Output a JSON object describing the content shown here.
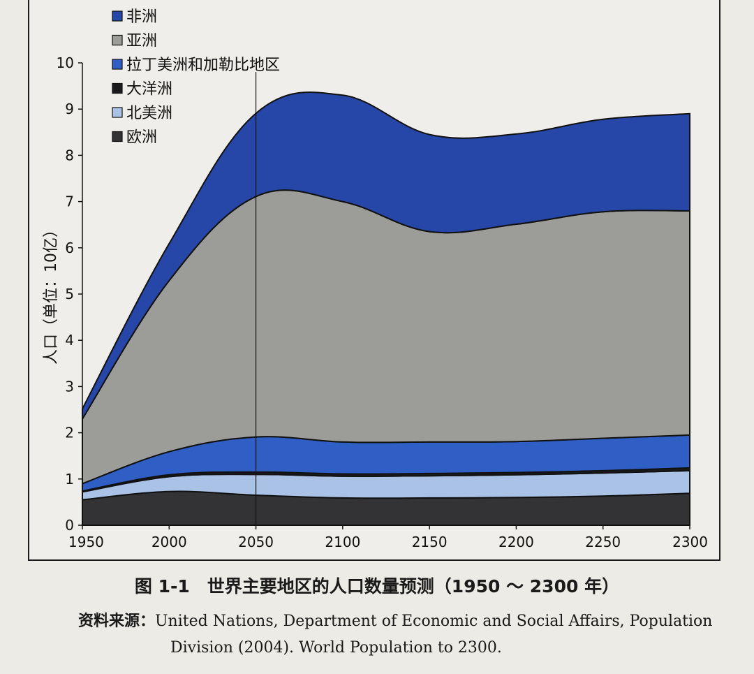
{
  "colors": {
    "africa": "#2646a8",
    "asia": "#9c9c98",
    "latin_america": "#2f5fc4",
    "oceania": "#1b1b1d",
    "north_america": "#a9c2e6",
    "europe": "#333335",
    "background": "#efeeea"
  },
  "chart_data": {
    "type": "area",
    "stacked": true,
    "x": [
      1950,
      2000,
      2050,
      2100,
      2150,
      2200,
      2250,
      2300
    ],
    "ylabel": "人口（单位：10亿）",
    "xlim": [
      1950,
      2300
    ],
    "ylim": [
      0,
      10
    ],
    "xticks": [
      "1950",
      "2000",
      "2050",
      "2100",
      "2150",
      "2200",
      "2250",
      "2300"
    ],
    "yticks": [
      "0",
      "1",
      "2",
      "3",
      "4",
      "5",
      "6",
      "7",
      "8",
      "9",
      "10"
    ],
    "reference_line_x": 2050,
    "legend_position": "top-left",
    "series": [
      {
        "name": "欧洲",
        "key": "europe",
        "values": [
          0.55,
          0.73,
          0.65,
          0.59,
          0.59,
          0.6,
          0.63,
          0.69
        ]
      },
      {
        "name": "北美洲",
        "key": "north_america",
        "values": [
          0.17,
          0.32,
          0.45,
          0.47,
          0.48,
          0.49,
          0.5,
          0.49
        ]
      },
      {
        "name": "大洋洲",
        "key": "oceania",
        "values": [
          0.02,
          0.04,
          0.05,
          0.05,
          0.05,
          0.05,
          0.05,
          0.06
        ]
      },
      {
        "name": "拉丁美洲和加勒比地区",
        "key": "latin_america",
        "values": [
          0.16,
          0.5,
          0.76,
          0.69,
          0.68,
          0.67,
          0.7,
          0.71
        ]
      },
      {
        "name": "亚洲",
        "key": "asia",
        "values": [
          1.4,
          3.7,
          5.2,
          5.2,
          4.55,
          4.7,
          4.9,
          4.85
        ]
      },
      {
        "name": "非洲",
        "key": "africa",
        "values": [
          0.22,
          0.8,
          1.8,
          2.3,
          2.1,
          1.95,
          2.0,
          2.1
        ]
      }
    ]
  },
  "caption": "图 1-1　世界主要地区的人口数量预测（1950 ～ 2300 年）",
  "source": {
    "prefix": "资料来源：",
    "line1": "United Nations, Department of Economic and Social Affairs, Population",
    "line2": "Division (2004). World Population to 2300."
  }
}
